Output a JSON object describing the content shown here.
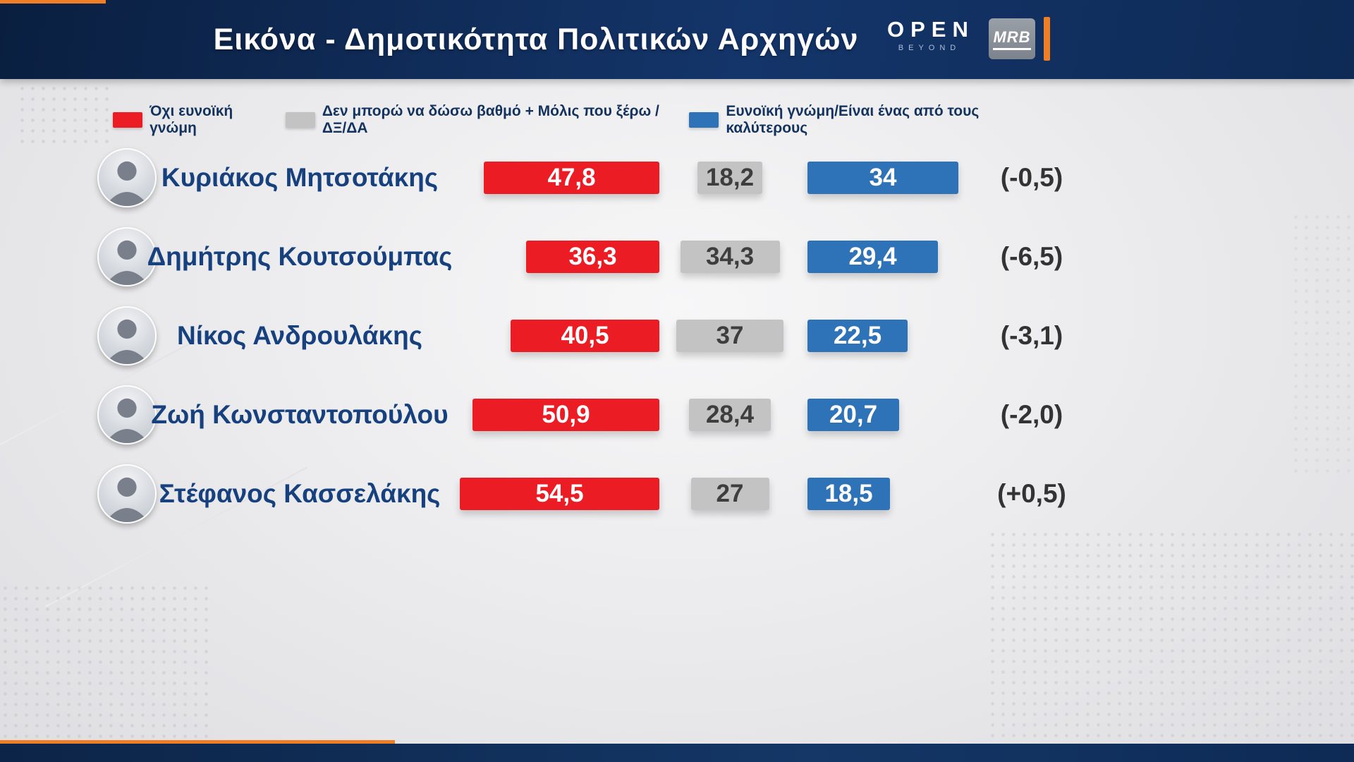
{
  "header": {
    "title": "Εικόνα - Δημοτικότητα Πολιτικών Αρχηγών",
    "open_logo_main": "OPEN",
    "open_logo_sub": "BEYOND",
    "mrb_logo": "MRB"
  },
  "legend": [
    {
      "label": "Όχι ευνοϊκή γνώμη",
      "color": "#ec1c24"
    },
    {
      "label": "Δεν μπορώ να δώσω βαθμό + Μόλις που ξέρω / ΔΞ/ΔΑ",
      "color": "#c3c3c3"
    },
    {
      "label": "Ευνοϊκή γνώμη/Είναι ένας από τους καλύτερους",
      "color": "#2e73b8"
    }
  ],
  "chart_data": {
    "type": "bar",
    "orientation": "horizontal",
    "title": "Εικόνα - Δημοτικότητα Πολιτικών Αρχηγών",
    "series_names": [
      "Όχι ευνοϊκή γνώμη",
      "Δεν μπορώ να δώσω βαθμό + Μόλις που ξέρω / ΔΞ/ΔΑ",
      "Ευνοϊκή γνώμη/Είναι ένας από τους καλύτερους"
    ],
    "value_unit": "percent",
    "rows": [
      {
        "name": "Κυριάκος Μητσοτάκης",
        "negative": {
          "value": 47.8,
          "label": "47,8"
        },
        "neutral": {
          "value": 18.2,
          "label": "18,2"
        },
        "positive": {
          "value": 34,
          "label": "34"
        },
        "diff": "(-0,5)"
      },
      {
        "name": "Δημήτρης Κουτσούμπας",
        "negative": {
          "value": 36.3,
          "label": "36,3"
        },
        "neutral": {
          "value": 34.3,
          "label": "34,3"
        },
        "positive": {
          "value": 29.4,
          "label": "29,4"
        },
        "diff": "(-6,5)"
      },
      {
        "name": "Νίκος Ανδρουλάκης",
        "negative": {
          "value": 40.5,
          "label": "40,5"
        },
        "neutral": {
          "value": 37,
          "label": "37"
        },
        "positive": {
          "value": 22.5,
          "label": "22,5"
        },
        "diff": "(-3,1)"
      },
      {
        "name": "Ζωή Κωνσταντοπούλου",
        "negative": {
          "value": 50.9,
          "label": "50,9"
        },
        "neutral": {
          "value": 28.4,
          "label": "28,4"
        },
        "positive": {
          "value": 20.7,
          "label": "20,7"
        },
        "diff": "(-2,0)"
      },
      {
        "name": "Στέφανος Κασσελάκης",
        "negative": {
          "value": 54.5,
          "label": "54,5"
        },
        "neutral": {
          "value": 27,
          "label": "27"
        },
        "positive": {
          "value": 18.5,
          "label": "18,5"
        },
        "diff": "(+0,5)"
      }
    ]
  }
}
